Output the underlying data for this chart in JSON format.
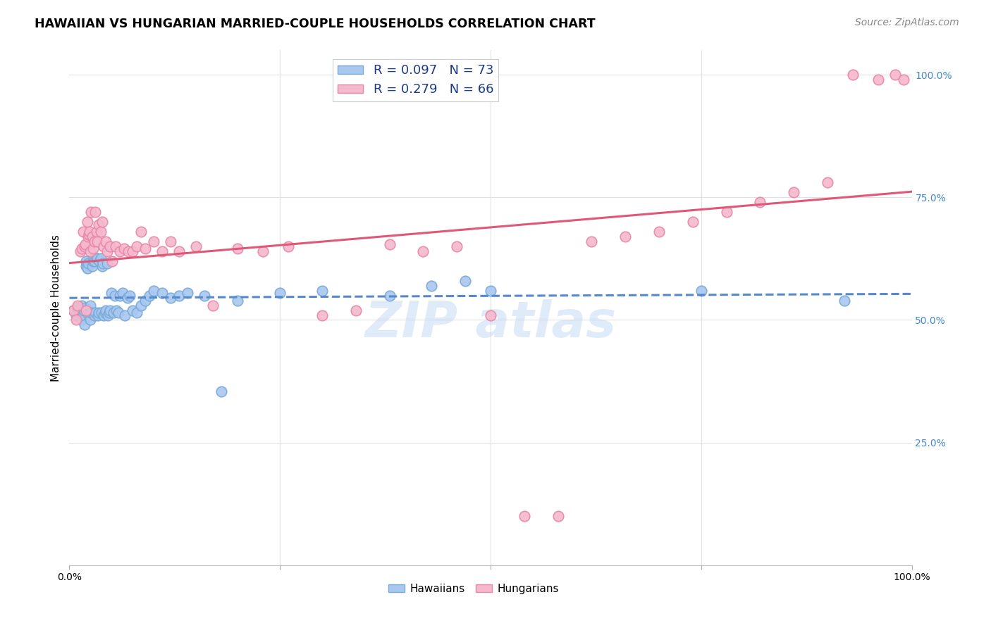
{
  "title": "HAWAIIAN VS HUNGARIAN MARRIED-COUPLE HOUSEHOLDS CORRELATION CHART",
  "source": "Source: ZipAtlas.com",
  "ylabel": "Married-couple Households",
  "xlim": [
    0.0,
    1.0
  ],
  "ylim": [
    0.0,
    1.05
  ],
  "hawaiians_R": 0.097,
  "hawaiians_N": 73,
  "hungarians_R": 0.279,
  "hungarians_N": 66,
  "hawaiian_color": "#a8c8f0",
  "hungarian_color": "#f5b8cc",
  "hawaiian_edge": "#7aaad8",
  "hungarian_edge": "#e888a8",
  "trend_hawaiian_color": "#5588cc",
  "trend_hungarian_color": "#e05878",
  "background_color": "#ffffff",
  "grid_color": "#e0e0e0",
  "hawaiians_x": [
    0.005,
    0.008,
    0.01,
    0.012,
    0.013,
    0.015,
    0.015,
    0.016,
    0.017,
    0.018,
    0.019,
    0.02,
    0.02,
    0.021,
    0.022,
    0.023,
    0.024,
    0.025,
    0.025,
    0.026,
    0.027,
    0.028,
    0.029,
    0.03,
    0.03,
    0.031,
    0.032,
    0.033,
    0.034,
    0.035,
    0.036,
    0.037,
    0.038,
    0.039,
    0.04,
    0.041,
    0.042,
    0.043,
    0.045,
    0.046,
    0.047,
    0.048,
    0.05,
    0.052,
    0.054,
    0.056,
    0.058,
    0.06,
    0.063,
    0.066,
    0.069,
    0.072,
    0.075,
    0.08,
    0.085,
    0.09,
    0.095,
    0.1,
    0.11,
    0.12,
    0.13,
    0.14,
    0.16,
    0.18,
    0.2,
    0.25,
    0.3,
    0.38,
    0.43,
    0.47,
    0.5,
    0.75,
    0.92
  ],
  "hawaiians_y": [
    0.52,
    0.51,
    0.525,
    0.515,
    0.505,
    0.53,
    0.5,
    0.51,
    0.52,
    0.49,
    0.525,
    0.61,
    0.62,
    0.605,
    0.615,
    0.51,
    0.515,
    0.53,
    0.5,
    0.515,
    0.61,
    0.62,
    0.625,
    0.51,
    0.62,
    0.515,
    0.625,
    0.625,
    0.51,
    0.515,
    0.62,
    0.625,
    0.515,
    0.61,
    0.615,
    0.51,
    0.515,
    0.52,
    0.615,
    0.51,
    0.515,
    0.52,
    0.555,
    0.515,
    0.55,
    0.52,
    0.515,
    0.55,
    0.555,
    0.51,
    0.545,
    0.55,
    0.52,
    0.515,
    0.53,
    0.54,
    0.55,
    0.56,
    0.555,
    0.545,
    0.55,
    0.555,
    0.55,
    0.355,
    0.54,
    0.555,
    0.56,
    0.55,
    0.57,
    0.58,
    0.56,
    0.56,
    0.54
  ],
  "hungarians_x": [
    0.005,
    0.008,
    0.01,
    0.013,
    0.015,
    0.016,
    0.018,
    0.019,
    0.02,
    0.021,
    0.022,
    0.023,
    0.024,
    0.025,
    0.026,
    0.027,
    0.028,
    0.03,
    0.031,
    0.032,
    0.033,
    0.035,
    0.037,
    0.039,
    0.041,
    0.043,
    0.045,
    0.048,
    0.051,
    0.055,
    0.06,
    0.065,
    0.07,
    0.075,
    0.08,
    0.085,
    0.09,
    0.1,
    0.11,
    0.12,
    0.13,
    0.15,
    0.17,
    0.2,
    0.23,
    0.26,
    0.3,
    0.34,
    0.38,
    0.42,
    0.46,
    0.5,
    0.54,
    0.58,
    0.62,
    0.66,
    0.7,
    0.74,
    0.78,
    0.82,
    0.86,
    0.9,
    0.93,
    0.96,
    0.98,
    0.99
  ],
  "hungarians_y": [
    0.52,
    0.5,
    0.53,
    0.64,
    0.645,
    0.68,
    0.65,
    0.655,
    0.52,
    0.7,
    0.67,
    0.675,
    0.68,
    0.64,
    0.72,
    0.67,
    0.645,
    0.66,
    0.72,
    0.68,
    0.66,
    0.695,
    0.68,
    0.7,
    0.65,
    0.66,
    0.64,
    0.65,
    0.62,
    0.65,
    0.64,
    0.645,
    0.64,
    0.64,
    0.65,
    0.68,
    0.645,
    0.66,
    0.64,
    0.66,
    0.64,
    0.65,
    0.53,
    0.645,
    0.64,
    0.65,
    0.51,
    0.52,
    0.655,
    0.64,
    0.65,
    0.51,
    0.1,
    0.1,
    0.66,
    0.67,
    0.68,
    0.7,
    0.72,
    0.74,
    0.76,
    0.78,
    1.0,
    0.99,
    1.0,
    0.99
  ]
}
